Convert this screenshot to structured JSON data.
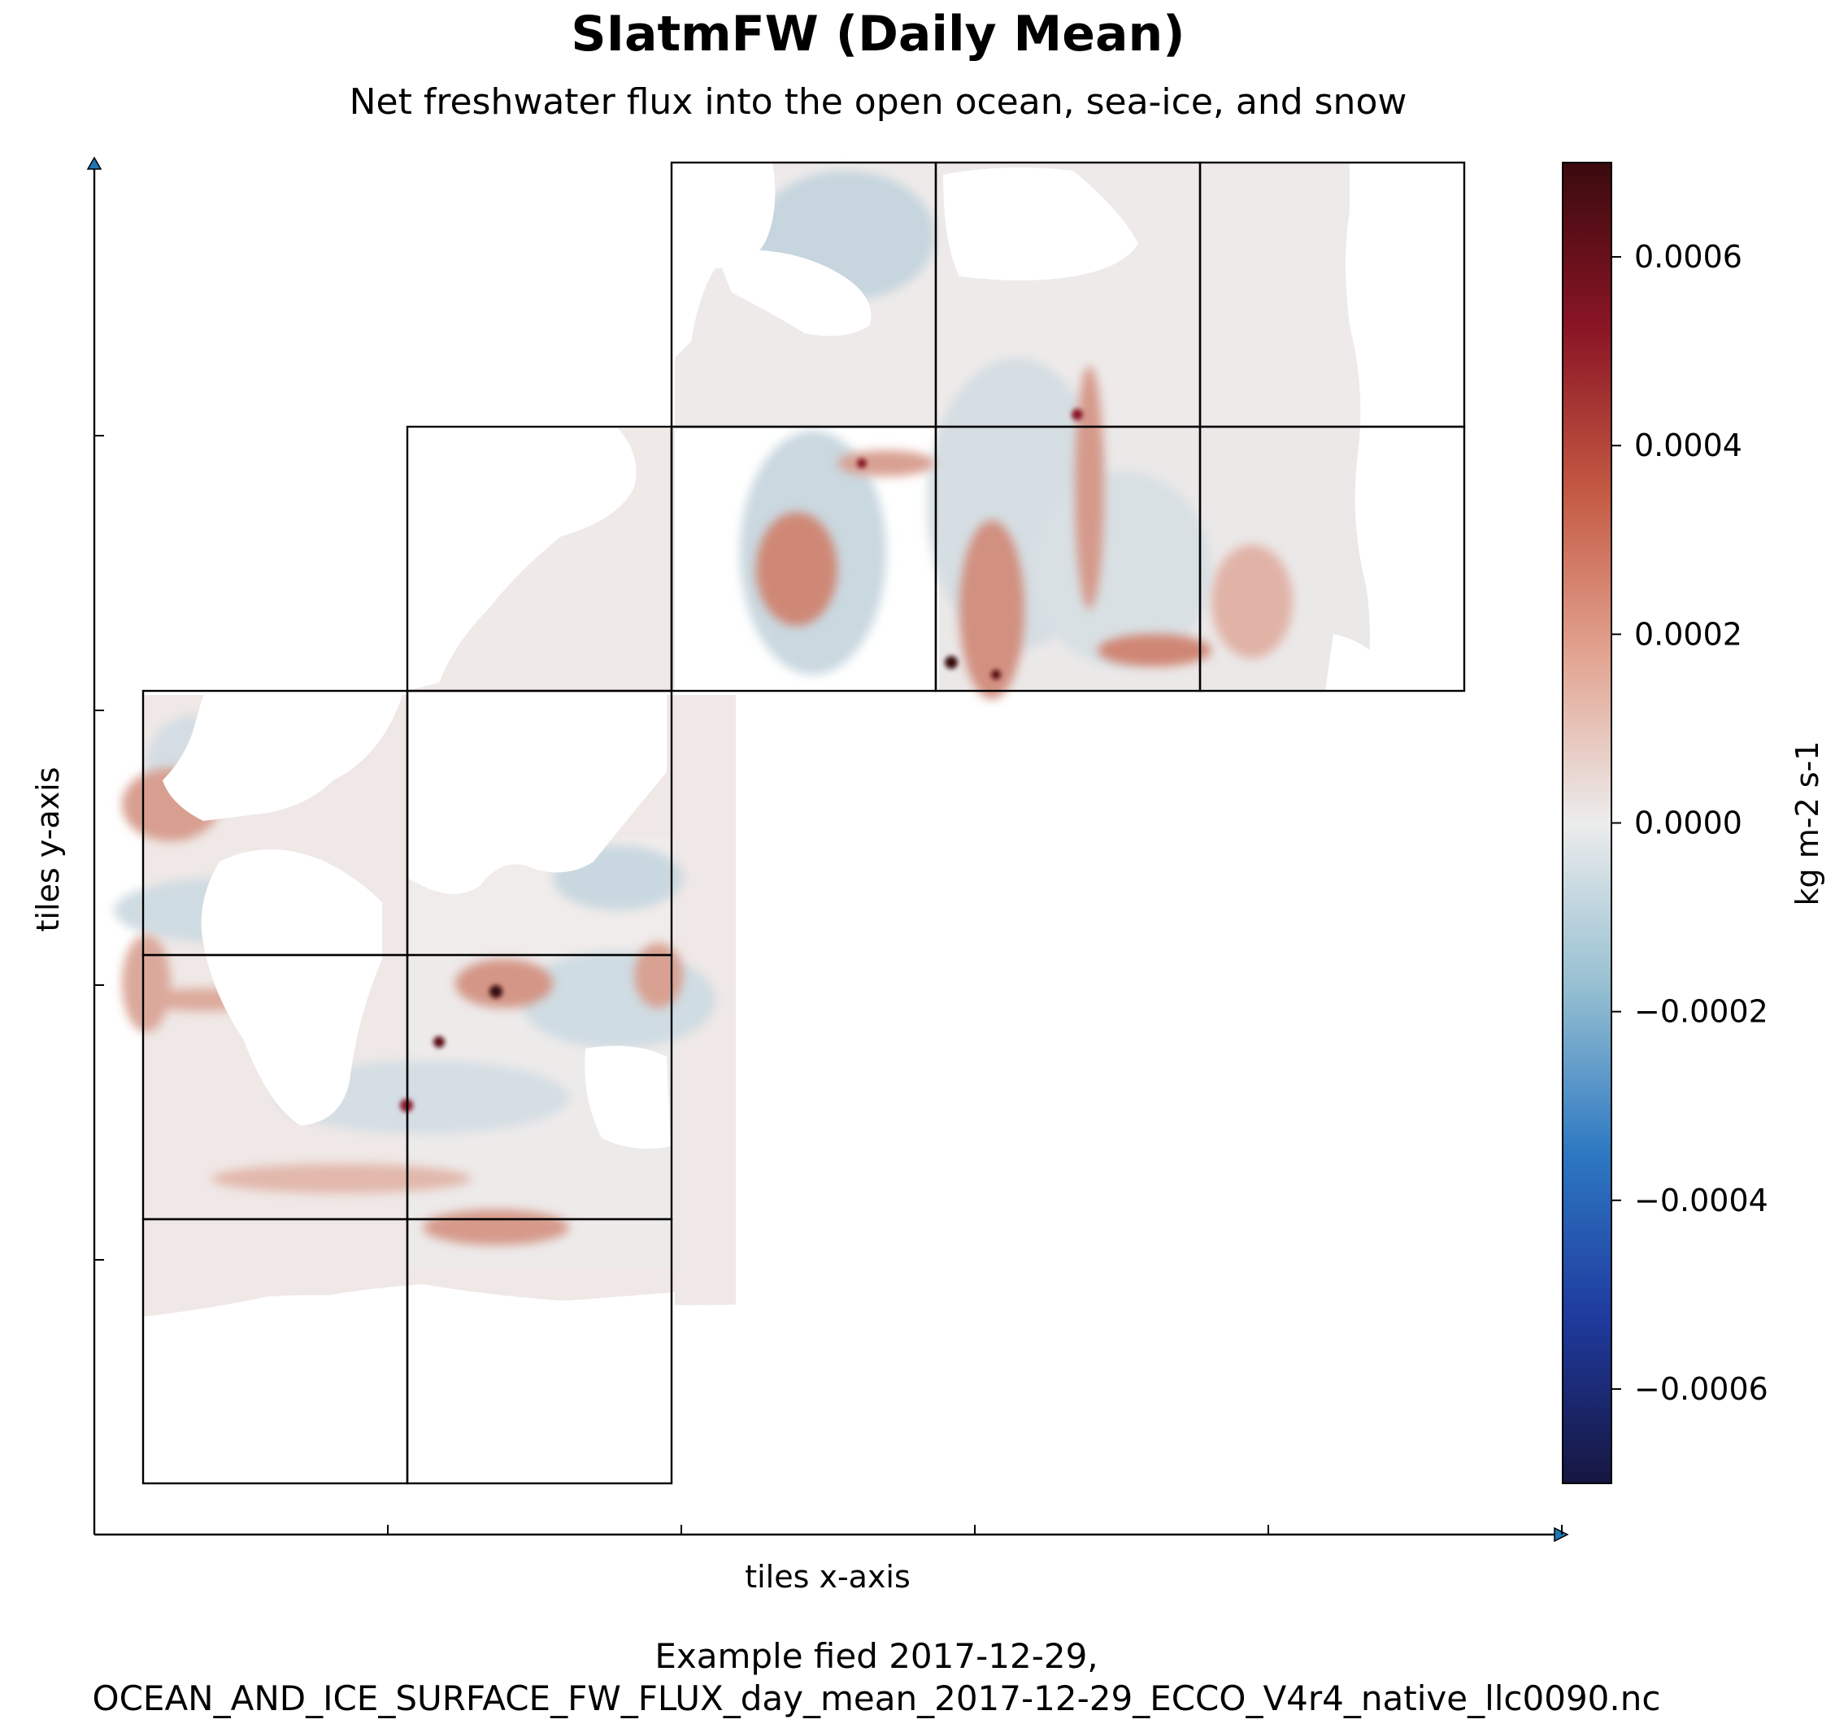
{
  "chart_data": {
    "type": "heatmap",
    "title": "SIatmFW (Daily Mean)",
    "subtitle": "Net freshwater flux into the open ocean, sea-ice, and snow",
    "xlabel": "tiles x-axis",
    "ylabel": "tiles y-axis",
    "footer": [
      "Example fied 2017-12-29,",
      "OCEAN_AND_ICE_SURFACE_FW_FLUX_day_mean_2017-12-29_ECCO_V4r4_native_llc0090.nc"
    ],
    "colorbar": {
      "label": "kg m-2 s-1",
      "colormap": "diverging (dark navy - blue - light blue - white - light red - red - dark maroon)",
      "range": [
        -0.0007,
        0.0007
      ],
      "ticks": [
        {
          "value": 0.0006,
          "label": "0.0006"
        },
        {
          "value": 0.0004,
          "label": "0.0004"
        },
        {
          "value": 0.0002,
          "label": "0.0002"
        },
        {
          "value": 0.0,
          "label": "0.0000"
        },
        {
          "value": -0.0002,
          "label": "−0.0002"
        },
        {
          "value": -0.0004,
          "label": "−0.0004"
        },
        {
          "value": -0.0006,
          "label": "−0.0006"
        }
      ],
      "colors": [
        "#16163f",
        "#1f3a9e",
        "#2d78c2",
        "#95bfd1",
        "#ececec",
        "#e2a592",
        "#c45a43",
        "#8a1525",
        "#3a0a0e"
      ]
    },
    "x_ticks_count": 5,
    "y_ticks_count": 4,
    "tiles": [
      {
        "tile": "facet-1-col-0-row-0",
        "col": 0,
        "row": 0
      },
      {
        "tile": "facet-1-col-0-row-1",
        "col": 0,
        "row": 1
      },
      {
        "tile": "facet-1-col-0-row-2",
        "col": 0,
        "row": 2
      },
      {
        "tile": "facet-2-col-1-row-0",
        "col": 1,
        "row": 0
      },
      {
        "tile": "facet-2-col-1-row-1",
        "col": 1,
        "row": 1
      },
      {
        "tile": "facet-2-col-1-row-2",
        "col": 1,
        "row": 2
      },
      {
        "tile": "facet-3-col-1-row-3",
        "col": 1,
        "row": 3
      },
      {
        "tile": "facet-4-col-2-row-3",
        "col": 2,
        "row": 3
      },
      {
        "tile": "facet-4-col-3-row-3",
        "col": 3,
        "row": 3
      },
      {
        "tile": "facet-4-col-4-row-3",
        "col": 4,
        "row": 3
      },
      {
        "tile": "facet-5-col-2-row-4",
        "col": 2,
        "row": 4
      },
      {
        "tile": "facet-5-col-3-row-4",
        "col": 3,
        "row": 4
      },
      {
        "tile": "facet-5-col-4-row-4",
        "col": 4,
        "row": 4
      }
    ],
    "notes_visual": "Mostly near-zero (white/pale) field; positive (red) bands in storm tracks and ITCZ, dark maroon spots up to ~0.0007; weak negative (light blue) patches in subtropics; white areas are land."
  }
}
